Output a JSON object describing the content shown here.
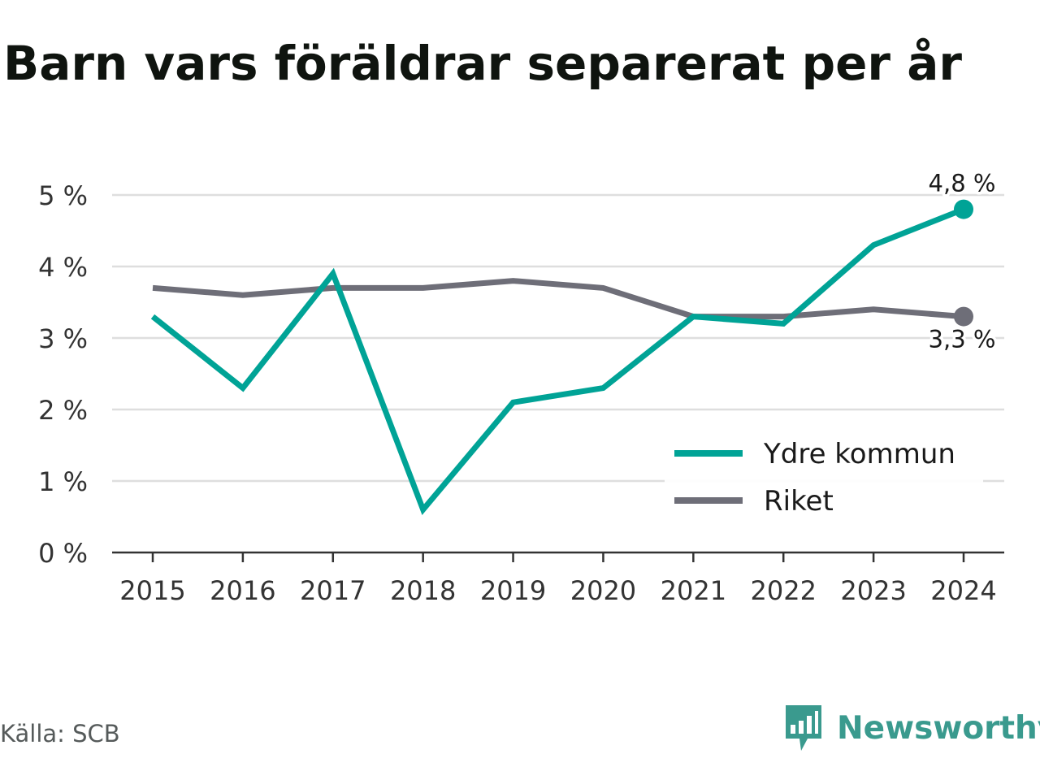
{
  "title": "Barn vars föräldrar separerat per år",
  "source": "Källa: SCB",
  "brand": {
    "name": "Newsworthy",
    "icon": "newsworthy-logo-icon",
    "color": "#3a9a8e"
  },
  "chart_data": {
    "type": "line",
    "title": "Barn vars föräldrar separerat per år",
    "xlabel": "",
    "ylabel": "",
    "x": [
      "2015",
      "2016",
      "2017",
      "2018",
      "2019",
      "2020",
      "2021",
      "2022",
      "2023",
      "2024"
    ],
    "y_ticks": [
      {
        "value": 0,
        "label": "0 %"
      },
      {
        "value": 1,
        "label": "1 %"
      },
      {
        "value": 2,
        "label": "2 %"
      },
      {
        "value": 3,
        "label": "3 %"
      },
      {
        "value": 4,
        "label": "4 %"
      },
      {
        "value": 5,
        "label": "5 %"
      }
    ],
    "ylim": [
      0,
      5
    ],
    "grid": true,
    "legend_position": "bottom-right",
    "series": [
      {
        "name": "Ydre kommun",
        "color": "#00a396",
        "values": [
          3.3,
          2.3,
          3.9,
          0.6,
          2.1,
          2.3,
          3.3,
          3.2,
          4.3,
          4.8
        ],
        "end_label": "4,8 %"
      },
      {
        "name": "Riket",
        "color": "#6e6e78",
        "values": [
          3.7,
          3.6,
          3.7,
          3.7,
          3.8,
          3.7,
          3.3,
          3.3,
          3.4,
          3.3
        ],
        "end_label": "3,3 %"
      }
    ]
  }
}
